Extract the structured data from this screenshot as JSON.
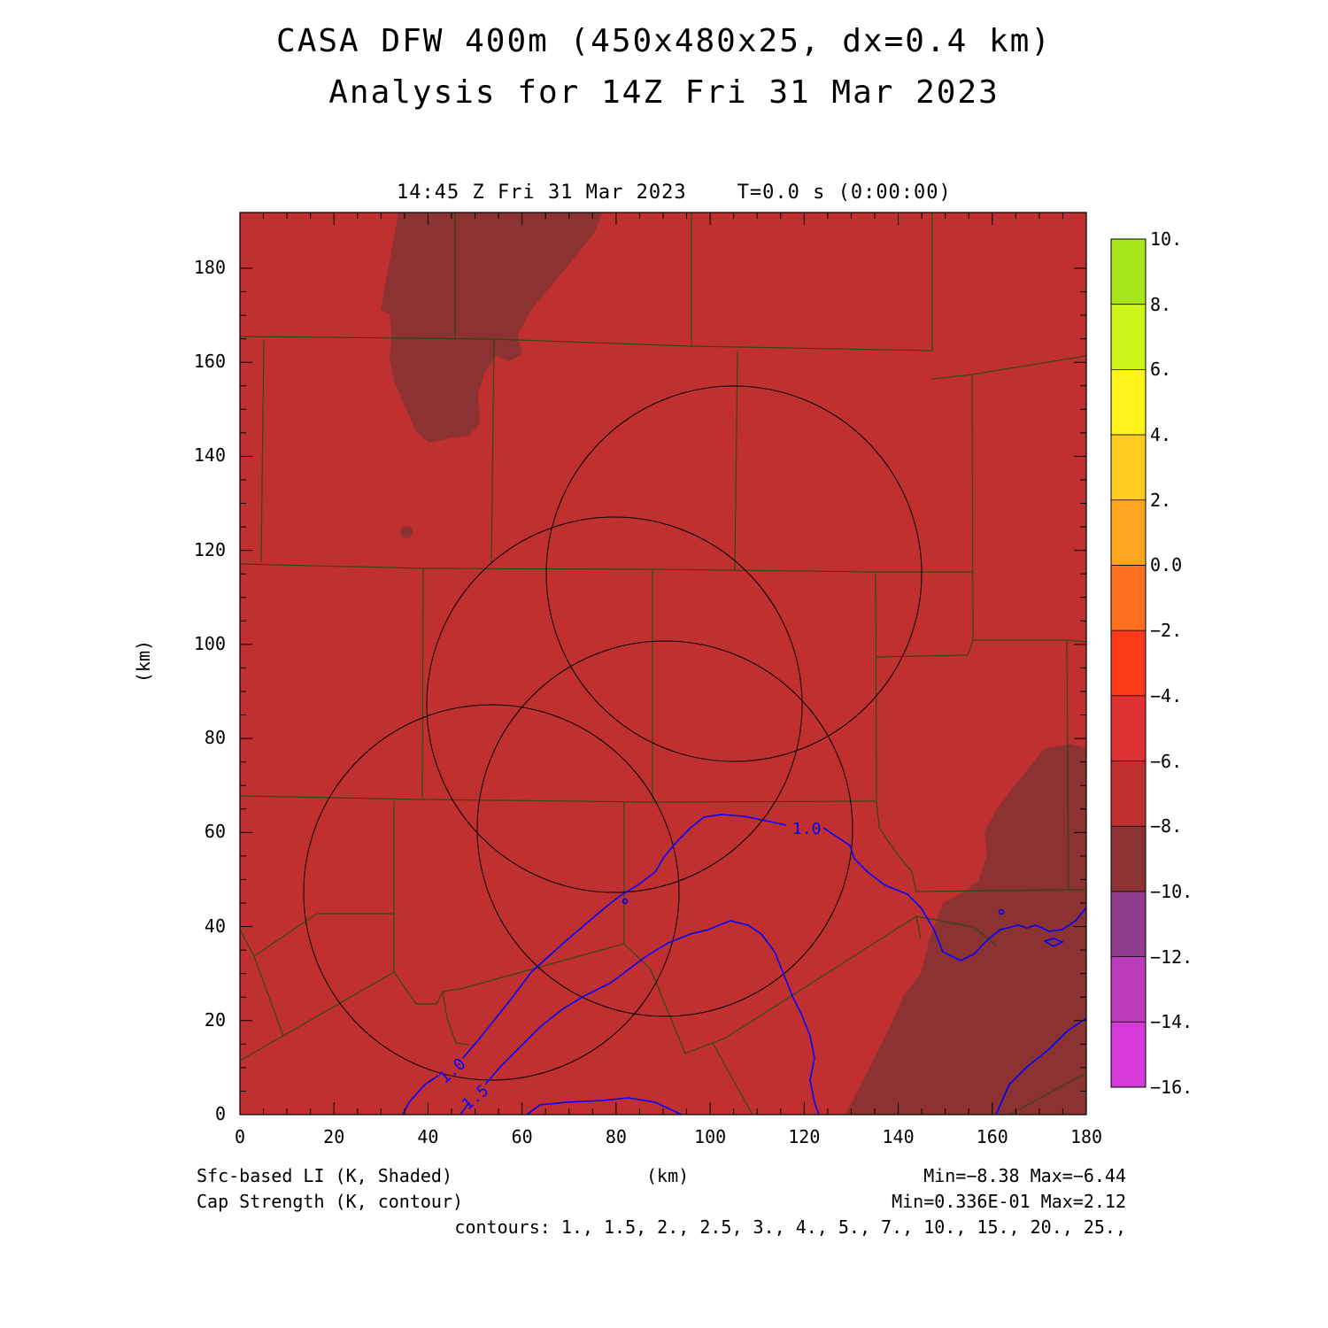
{
  "title_line1": "CASA DFW 400m (450x480x25, dx=0.4 km)",
  "title_line2": "Analysis for 14Z Fri 31 Mar 2023",
  "valid_time": "14:45 Z Fri 31 Mar 2023    T=0.0 s (0:00:00)",
  "y_axis_label": "(km)",
  "x_axis_label": "(km)",
  "x_ticks": [
    "0",
    "20",
    "40",
    "60",
    "80",
    "100",
    "120",
    "140",
    "160",
    "180"
  ],
  "y_ticks": [
    "0",
    "20",
    "40",
    "60",
    "80",
    "100",
    "120",
    "140",
    "160",
    "180"
  ],
  "colorbar_labels": [
    "10.",
    "8.",
    "6.",
    "4.",
    "2.",
    "0.0",
    "−2.",
    "−4.",
    "−6.",
    "−8.",
    "−10.",
    "−12.",
    "−14.",
    "−16."
  ],
  "colorbar_colors": [
    "#a6e61a",
    "#cdf51a",
    "#fff31a",
    "#ffcc1f",
    "#ffa51f",
    "#ff6f1f",
    "#ff3a1a",
    "#de3232",
    "#c03030",
    "#8c3232",
    "#8c3c8c",
    "#bc3cbc",
    "#d63ad6"
  ],
  "shade_main_color": "#c03030",
  "shade_dark_color": "#8c3232",
  "county_line_color": "#2e4a12",
  "contour_color": "#0000ff",
  "contour_labels": [
    "1.0",
    "1.0",
    "1.5"
  ],
  "footer": {
    "field1": "Sfc-based LI (K, Shaded)",
    "field2": "Cap Strength (K, contour)",
    "units": "(km)",
    "range1": "Min=−8.38 Max=−6.44",
    "range2": "Min=0.336E-01 Max=2.12",
    "contours": "contours: 1., 1.5, 2., 2.5, 3., 4., 5., 7., 10., 15., 20., 25.,"
  }
}
